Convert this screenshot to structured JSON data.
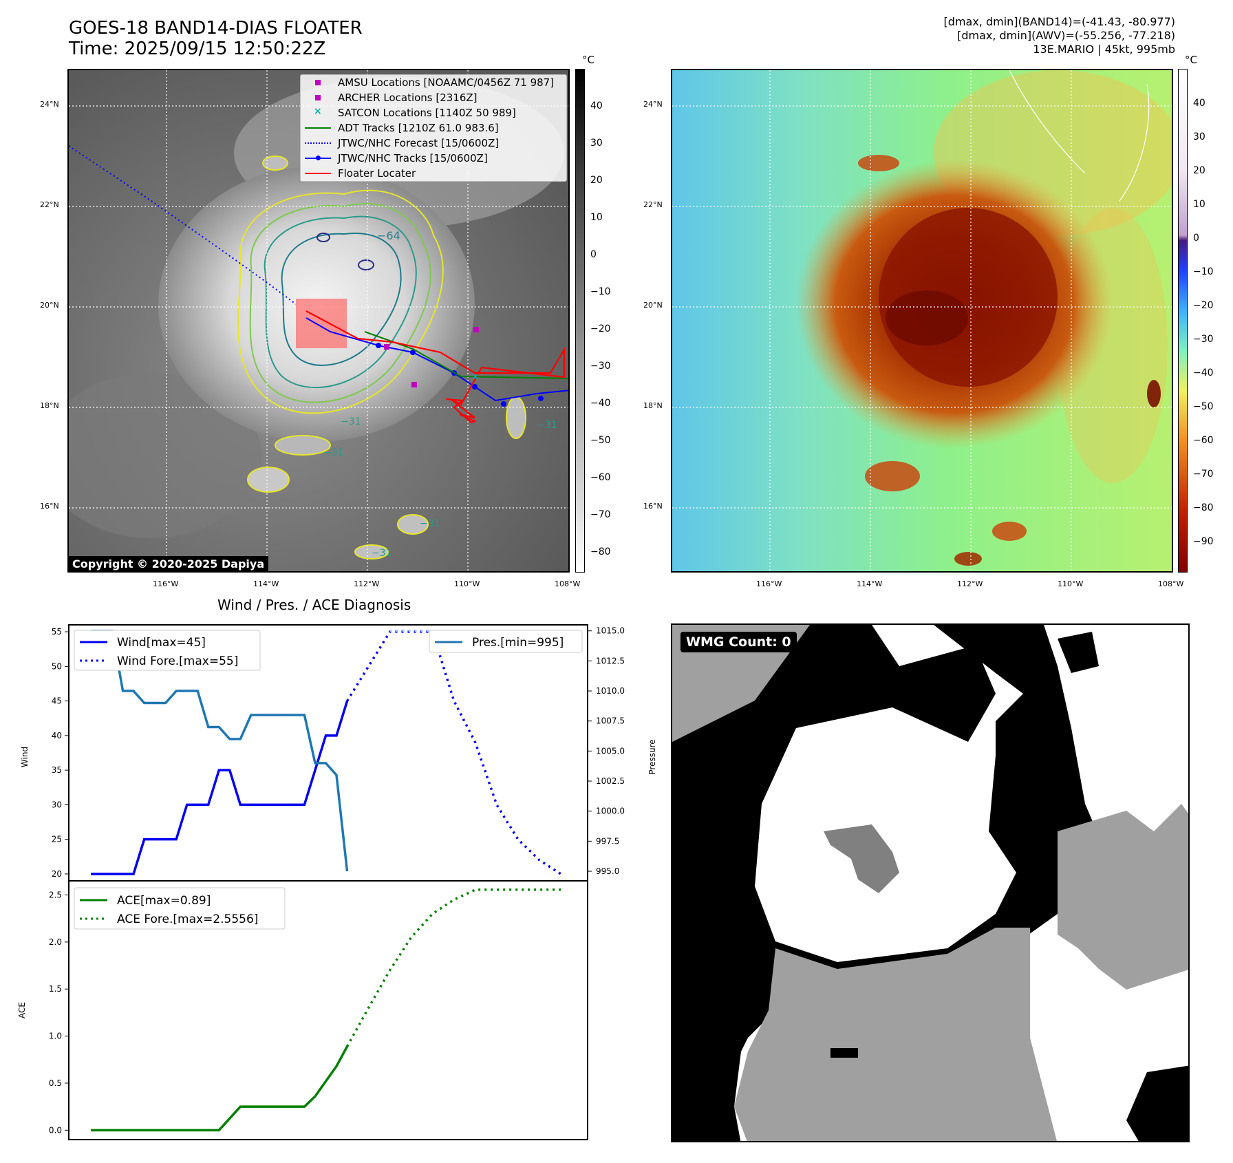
{
  "header": {
    "title_line1": "GOES-18 BAND14-DIAS FLOATER",
    "title_line2": "Time: 2025/09/15 12:50:22Z",
    "stats_line1": "[dmax, dmin](BAND14)=(-41.43, -80.977)",
    "stats_line2": "[dmax, dmin](AWV)=(-55.256, -77.218)",
    "stats_line3": "13E.MARIO | 45kt, 995mb"
  },
  "maps": {
    "lat_labels": [
      "24°N",
      "22°N",
      "20°N",
      "18°N",
      "16°N"
    ],
    "lon_labels": [
      "116°W",
      "114°W",
      "112°W",
      "110°W",
      "108°W"
    ],
    "copyright": "Copyright © 2020-2025 Dapiya",
    "left_colorbar_unit": "°C",
    "left_colorbar_ticks": [
      "40",
      "30",
      "20",
      "10",
      "0",
      "−10",
      "−20",
      "−30",
      "−40",
      "−50",
      "−60",
      "−70",
      "−80"
    ],
    "right_colorbar_unit": "°C",
    "right_colorbar_ticks": [
      "40",
      "30",
      "20",
      "10",
      "0",
      "−10",
      "−20",
      "−30",
      "−40",
      "−50",
      "−60",
      "−70",
      "−80",
      "−90"
    ],
    "contour_labels": [
      "−64",
      "−31",
      "−31",
      "−31",
      "−31",
      "−31"
    ],
    "legend": [
      {
        "label": "AMSU Locations [NOAAMC/0456Z 71 987]",
        "color": "#c000c0",
        "marker": "square"
      },
      {
        "label": "ARCHER Locations [2316Z]",
        "color": "#c000c0",
        "marker": "square"
      },
      {
        "label": "SATCON Locations [1140Z 50 989]",
        "color": "#00b0b0",
        "marker": "x"
      },
      {
        "label": "ADT Tracks [1210Z 61.0 983.6]",
        "color": "#008000",
        "marker": "line"
      },
      {
        "label": "JTWC/NHC Forecast [15/0600Z]",
        "color": "#0000ff",
        "marker": "dotted"
      },
      {
        "label": "JTWC/NHC Tracks [15/0600Z]",
        "color": "#0000ff",
        "marker": "line-dot"
      },
      {
        "label": "Floater Locater",
        "color": "#ff0000",
        "marker": "line"
      }
    ]
  },
  "diagnosis": {
    "title": "Wind / Pres. / ACE Diagnosis",
    "wmg_label": "WMG Count: 0"
  },
  "chart_data": [
    {
      "type": "line",
      "title": "Wind / Pres. / ACE Diagnosis",
      "ylabel": "Wind",
      "ylabel_right": "Pressure",
      "ylim": [
        19,
        56
      ],
      "ylim_right": [
        994.2,
        1015.5
      ],
      "yticks": [
        20,
        25,
        30,
        35,
        40,
        45,
        50,
        55
      ],
      "yticks_right": [
        "995.0",
        "997.5",
        "1000.0",
        "1002.5",
        "1005.0",
        "1007.5",
        "1010.0",
        "1012.5",
        "1015.0"
      ],
      "series": [
        {
          "name": "Wind[max=45]",
          "color": "#0000ee",
          "style": "solid",
          "x": [
            0,
            1,
            2,
            3,
            4,
            5,
            6,
            7,
            8,
            9,
            10,
            11,
            12,
            13,
            14,
            15,
            16,
            17,
            18,
            19,
            20,
            21,
            22,
            23,
            24
          ],
          "values": [
            20,
            20,
            20,
            20,
            20,
            25,
            25,
            25,
            25,
            30,
            30,
            30,
            35,
            35,
            30,
            30,
            30,
            30,
            30,
            30,
            30,
            35,
            40,
            40,
            45
          ]
        },
        {
          "name": "Wind Fore.[max=55]",
          "color": "#0000ee",
          "style": "dotted",
          "x": [
            24,
            26,
            28,
            30,
            32,
            34,
            36,
            38,
            40,
            42,
            44
          ],
          "values": [
            45,
            50,
            55,
            55,
            55,
            45,
            39,
            30,
            25,
            22,
            20
          ]
        },
        {
          "name": "Pres.[min=995]",
          "color": "#1f77b4",
          "style": "solid",
          "x": [
            0,
            1,
            2,
            3,
            4,
            5,
            6,
            7,
            8,
            9,
            10,
            11,
            12,
            13,
            14,
            15,
            16,
            17,
            18,
            19,
            20,
            21,
            22,
            23,
            24
          ],
          "values": [
            1015,
            1015,
            1015,
            1010,
            1010,
            1009,
            1009,
            1009,
            1010,
            1010,
            1010,
            1007,
            1007,
            1006,
            1006,
            1008,
            1008,
            1008,
            1008,
            1008,
            1008,
            1004,
            1004,
            1003,
            995
          ]
        },
        {
          "name": "",
          "color": "#a8c8f0",
          "style": "dotted",
          "x": [
            28,
            30,
            32
          ],
          "values": [
            1015,
            1015,
            1015
          ]
        }
      ]
    },
    {
      "type": "line",
      "ylabel": "ACE",
      "ylim": [
        -0.1,
        2.65
      ],
      "yticks": [
        "0.0",
        "0.5",
        "1.0",
        "1.5",
        "2.0",
        "2.5"
      ],
      "series": [
        {
          "name": "ACE[max=0.89]",
          "color": "#008000",
          "style": "solid",
          "x": [
            0,
            2,
            4,
            6,
            8,
            10,
            12,
            14,
            16,
            18,
            20,
            21,
            22,
            23,
            24
          ],
          "values": [
            0,
            0,
            0,
            0,
            0,
            0,
            0,
            0.25,
            0.25,
            0.25,
            0.25,
            0.36,
            0.52,
            0.68,
            0.89
          ]
        },
        {
          "name": "ACE Fore.[max=2.5556]",
          "color": "#008000",
          "style": "dotted",
          "x": [
            24,
            26,
            28,
            30,
            32,
            34,
            36,
            38,
            40,
            42,
            44
          ],
          "values": [
            0.89,
            1.3,
            1.7,
            2.05,
            2.3,
            2.45,
            2.5556,
            2.5556,
            2.5556,
            2.5556,
            2.5556
          ]
        }
      ]
    }
  ]
}
